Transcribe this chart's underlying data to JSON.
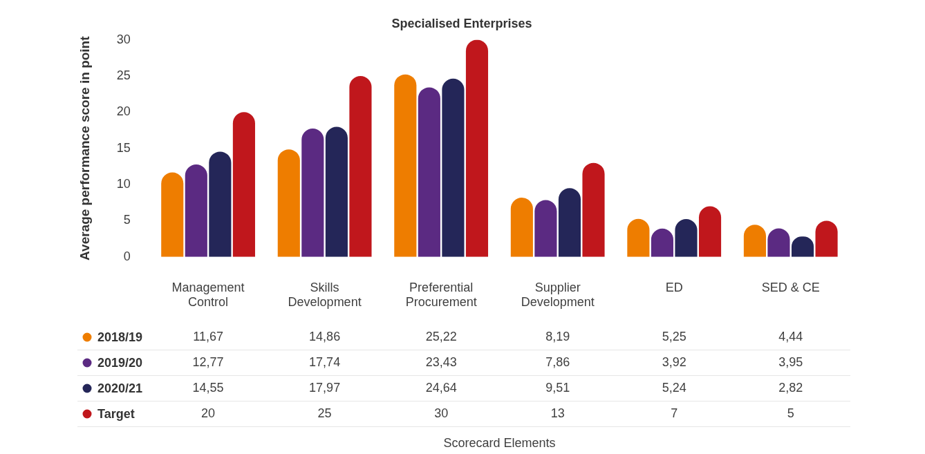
{
  "chart_data": {
    "type": "bar",
    "title": "Specialised Enterprises",
    "annotations": [
      "Scorecard Elements"
    ],
    "ylabel": "Average performance score in point",
    "categories": [
      "Management Control",
      "Skills Development",
      "Preferential Procurement",
      "Supplier Development",
      "ED",
      "SED & CE"
    ],
    "series": [
      {
        "name": "2018/19",
        "color": "#ee7d00",
        "values": [
          11.67,
          14.86,
          25.22,
          8.19,
          5.25,
          4.44
        ],
        "value_labels": [
          "11,67",
          "14,86",
          "25,22",
          "8,19",
          "5,25",
          "4,44"
        ]
      },
      {
        "name": "2019/20",
        "color": "#5b2a82",
        "values": [
          12.77,
          17.74,
          23.43,
          7.86,
          3.92,
          3.95
        ],
        "value_labels": [
          "12,77",
          "17,74",
          "23,43",
          "7,86",
          "3,92",
          "3,95"
        ]
      },
      {
        "name": "2020/21",
        "color": "#242658",
        "values": [
          14.55,
          17.97,
          24.64,
          9.51,
          5.24,
          2.82
        ],
        "value_labels": [
          "14,55",
          "17,97",
          "24,64",
          "9,51",
          "5,24",
          "2,82"
        ]
      },
      {
        "name": "Target",
        "color": "#c0171c",
        "values": [
          20,
          25,
          30,
          13,
          7,
          5
        ],
        "value_labels": [
          "20",
          "25",
          "30",
          "13",
          "7",
          "5"
        ]
      }
    ],
    "ylim": [
      0,
      30
    ],
    "yticks": [
      0,
      5,
      10,
      15,
      20,
      25,
      30
    ],
    "grid": false,
    "legend": "bottom left"
  }
}
